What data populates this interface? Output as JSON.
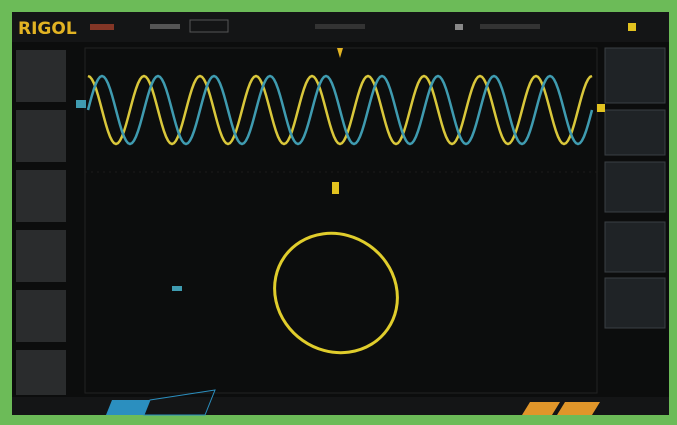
{
  "header": {
    "brand": "RIGOL"
  }
}
